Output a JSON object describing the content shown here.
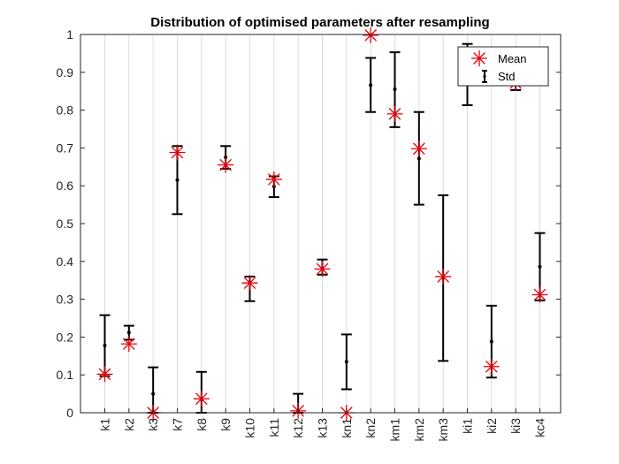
{
  "chart_data": {
    "type": "errorbar",
    "title": "Distribution of optimised parameters after resampling",
    "xlabel": "",
    "ylabel": "",
    "ylim": [
      0,
      1
    ],
    "yticks": [
      "0",
      "0.1",
      "0.2",
      "0.3",
      "0.4",
      "0.5",
      "0.6",
      "0.7",
      "0.8",
      "0.9",
      "1"
    ],
    "grid": "vertical",
    "legend": {
      "placement": "top-right",
      "entries": [
        "Mean",
        "Std"
      ]
    },
    "colors": {
      "mean_marker": "#e8000b",
      "std_bar": "#000000",
      "grid": "#dcdcdc"
    },
    "categories": [
      "k1",
      "k2",
      "k3",
      "k7",
      "k8",
      "k9",
      "k10",
      "k11",
      "k12",
      "k13",
      "kn1",
      "kn2",
      "km1",
      "km2",
      "km3",
      "ki1",
      "ki2",
      "ki3",
      "kc4"
    ],
    "series": [
      {
        "name": "Mean",
        "values": [
          0.102,
          0.182,
          0.0,
          0.688,
          0.037,
          0.655,
          0.343,
          0.617,
          0.005,
          0.38,
          0.0,
          0.998,
          0.79,
          0.698,
          0.36,
          0.895,
          0.122,
          0.872,
          0.312
        ]
      },
      {
        "name": "Std",
        "center": [
          0.178,
          0.212,
          0.05,
          0.615,
          0.035,
          0.675,
          0.345,
          0.598,
          0.005,
          0.382,
          0.135,
          0.866,
          0.855,
          0.672,
          0.357,
          0.895,
          0.188,
          0.872,
          0.386
        ],
        "lower": [
          0.097,
          0.193,
          0.0,
          0.525,
          0.0,
          0.645,
          0.295,
          0.57,
          0.0,
          0.365,
          0.062,
          0.795,
          0.755,
          0.55,
          0.137,
          0.813,
          0.093,
          0.853,
          0.297
        ],
        "upper": [
          0.258,
          0.23,
          0.12,
          0.705,
          0.108,
          0.705,
          0.36,
          0.625,
          0.05,
          0.405,
          0.207,
          0.938,
          0.953,
          0.795,
          0.575,
          0.975,
          0.283,
          0.89,
          0.475
        ]
      }
    ]
  }
}
